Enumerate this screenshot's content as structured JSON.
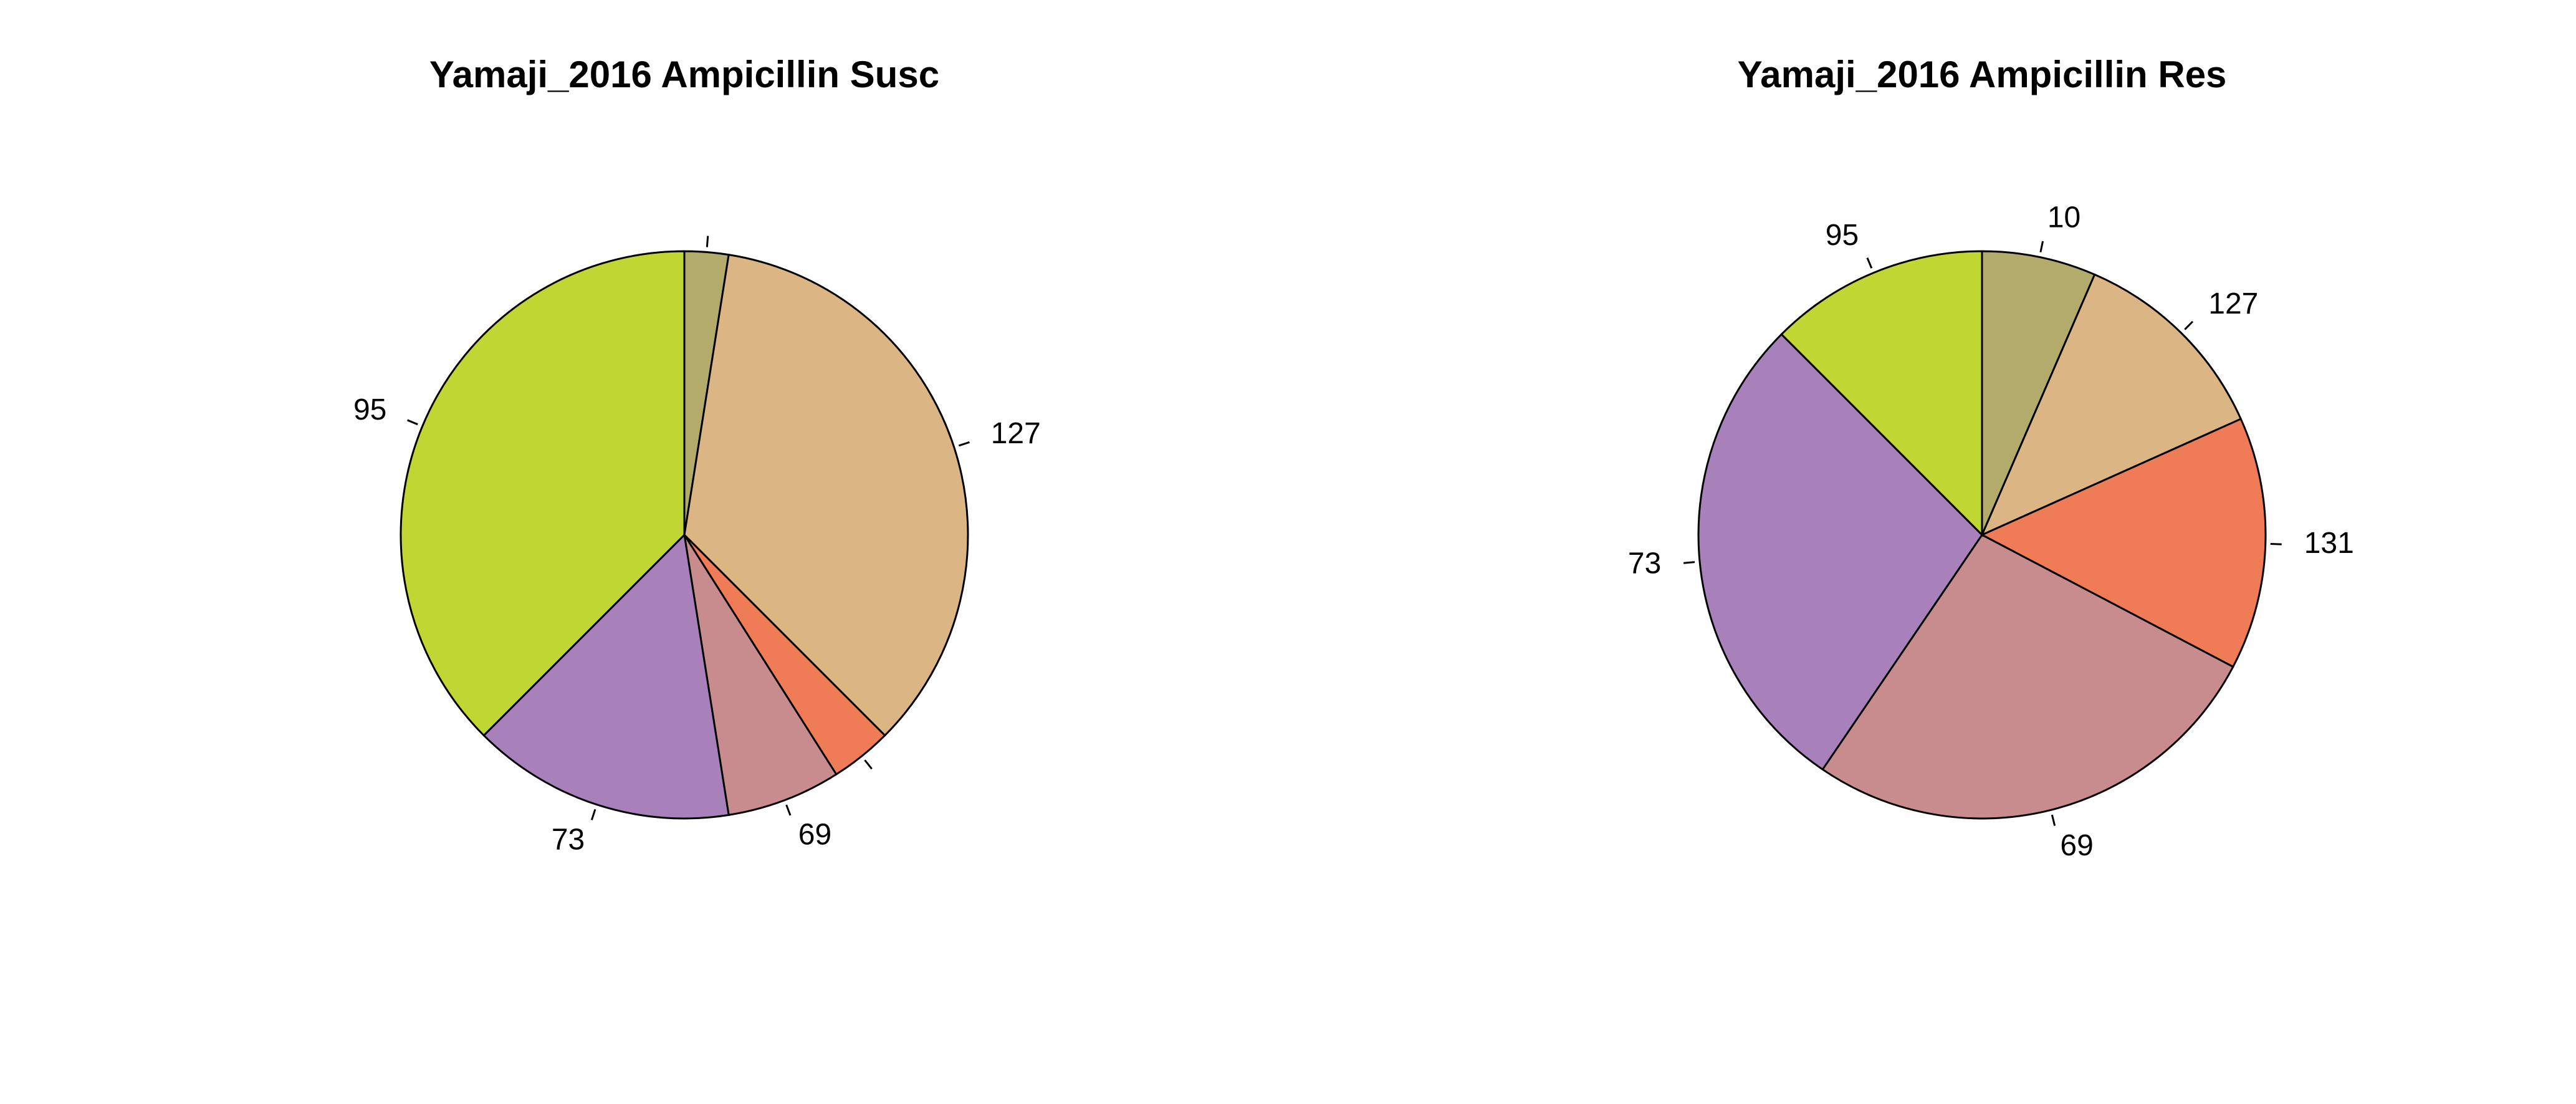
{
  "chart_data": [
    {
      "type": "pie",
      "title": "Yamaji_2016 Ampicillin Susc",
      "direction": "clockwise",
      "start": "12 o'clock",
      "slices": [
        {
          "label": "",
          "value": 2.5,
          "color": "#B3AB6B"
        },
        {
          "label": "127",
          "value": 35.0,
          "color": "#DBB584"
        },
        {
          "label": "",
          "value": 3.5,
          "color": "#EF7B57"
        },
        {
          "label": "69",
          "value": 6.5,
          "color": "#C98C8E"
        },
        {
          "label": "73",
          "value": 15.0,
          "color": "#A880BA"
        },
        {
          "label": "95",
          "value": 37.5,
          "color": "#BFD633"
        }
      ]
    },
    {
      "type": "pie",
      "title": "Yamaji_2016 Ampicillin Res",
      "direction": "clockwise",
      "start": "12 o'clock",
      "slices": [
        {
          "label": "10",
          "value": 6.5,
          "color": "#B3AB6B"
        },
        {
          "label": "127",
          "value": 11.8,
          "color": "#DBB584"
        },
        {
          "label": "131",
          "value": 14.4,
          "color": "#EF7B57"
        },
        {
          "label": "69",
          "value": 26.8,
          "color": "#C98C8E"
        },
        {
          "label": "73",
          "value": 28.0,
          "color": "#A880BA"
        },
        {
          "label": "95",
          "value": 12.5,
          "color": "#BFD633"
        }
      ]
    }
  ]
}
